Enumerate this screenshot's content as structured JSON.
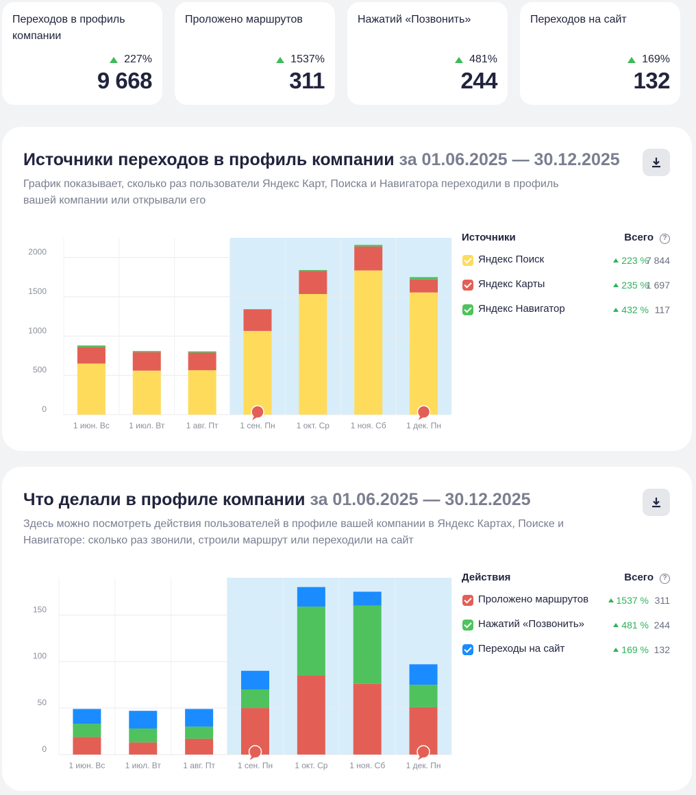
{
  "stats": [
    {
      "title": "Переходов в профиль компании",
      "delta": "227%",
      "value": "9 668"
    },
    {
      "title": "Проложено маршрутов",
      "delta": "1537%",
      "value": "311"
    },
    {
      "title": "Нажатий «Позвонить»",
      "delta": "481%",
      "value": "244"
    },
    {
      "title": "Переходов на сайт",
      "delta": "169%",
      "value": "132"
    }
  ],
  "sources_panel": {
    "title": "Источники переходов в профиль компании",
    "period": "за 01.06.2025 — 30.12.2025",
    "description": "График показывает, сколько раз пользователи Яндекс Карт, Поиска и Навигатора переходили в профиль вашей компании или открывали его",
    "legend_title": "Источники",
    "legend_total": "Всего",
    "help_glyph": "?",
    "legend": [
      {
        "label": "Яндекс Поиск",
        "delta": "223 %",
        "total": "7 844",
        "color": "#ffdb5c"
      },
      {
        "label": "Яндекс Карты",
        "delta": "235 %",
        "total": "1 697",
        "color": "#e35f55"
      },
      {
        "label": "Яндекс Навигатор",
        "delta": "432 %",
        "total": "117",
        "color": "#4fc25d"
      }
    ]
  },
  "actions_panel": {
    "title": "Что делали в профиле компании",
    "period": "за 01.06.2025 — 30.12.2025",
    "description": "Здесь можно посмотреть действия пользователей в профиле вашей компании в Яндекс Картах, Поиске и Навигаторе: сколько раз звонили, строили маршрут или переходили на сайт",
    "legend_title": "Действия",
    "legend_total": "Всего",
    "help_glyph": "?",
    "legend": [
      {
        "label": "Проложено маршрутов",
        "delta": "1537 %",
        "total": "311",
        "color": "#e35f55"
      },
      {
        "label": "Нажатий «Позвонить»",
        "delta": "481 %",
        "total": "244",
        "color": "#4fc25d"
      },
      {
        "label": "Переходы на сайт",
        "delta": "169 %",
        "total": "132",
        "color": "#1a8cff"
      }
    ]
  },
  "chart_data": [
    {
      "type": "bar",
      "stacked": true,
      "categories": [
        "1 июн. Вс",
        "1 июл. Вт",
        "1 авг. Пт",
        "1 сен. Пн",
        "1 окт. Ср",
        "1 ноя. Сб",
        "1 дек. Пн"
      ],
      "yticks": [
        0,
        500,
        1000,
        1500,
        2000
      ],
      "ylim": [
        0,
        2250
      ],
      "highlight_from_index": 3,
      "markers_at_index": [
        3,
        6
      ],
      "series": [
        {
          "name": "Яндекс Поиск",
          "color": "#ffdb5c",
          "values": [
            650,
            560,
            565,
            1065,
            1535,
            1835,
            1555
          ]
        },
        {
          "name": "Яндекс Карты",
          "color": "#e35f55",
          "values": [
            210,
            235,
            225,
            270,
            295,
            305,
            165
          ]
        },
        {
          "name": "Яндекс Навигатор",
          "color": "#4fc25d",
          "values": [
            20,
            15,
            15,
            8,
            10,
            20,
            30
          ]
        }
      ]
    },
    {
      "type": "bar",
      "stacked": true,
      "categories": [
        "1 июн. Вс",
        "1 июл. Вт",
        "1 авг. Пт",
        "1 сен. Пн",
        "1 окт. Ср",
        "1 ноя. Сб",
        "1 дек. Пн"
      ],
      "yticks": [
        0,
        50,
        100,
        150
      ],
      "ylim": [
        0,
        190
      ],
      "highlight_from_index": 3,
      "markers_at_index": [
        3,
        6
      ],
      "series": [
        {
          "name": "Проложено маршрутов",
          "color": "#e35f55",
          "values": [
            19,
            13,
            17,
            50,
            85,
            76,
            51
          ]
        },
        {
          "name": "Нажатий «Позвонить»",
          "color": "#4fc25d",
          "values": [
            14,
            15,
            13,
            20,
            74,
            84,
            24
          ]
        },
        {
          "name": "Переходы на сайт",
          "color": "#1a8cff",
          "values": [
            16,
            19,
            19,
            20,
            21,
            15,
            22
          ]
        }
      ]
    }
  ]
}
